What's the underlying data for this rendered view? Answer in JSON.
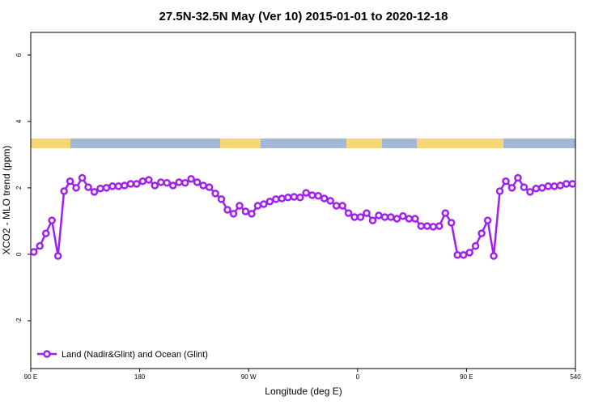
{
  "chart_data": {
    "type": "line",
    "title": "27.5N-32.5N May (Ver 10)   2015-01-01 to 2020-12-18",
    "x_label": "Longitude (deg E)",
    "y_label": "XCO2 - MLO trend (ppm)",
    "x": [
      92.5,
      97.5,
      102.5,
      107.5,
      112.5,
      117.5,
      122.5,
      127.5,
      132.5,
      137.5,
      142.5,
      147.5,
      152.5,
      157.5,
      162.5,
      167.5,
      172.5,
      177.5,
      182.5,
      187.5,
      192.5,
      197.5,
      202.5,
      207.5,
      212.5,
      217.5,
      222.5,
      227.5,
      232.5,
      237.5,
      242.5,
      247.5,
      252.5,
      257.5,
      262.5,
      267.5,
      272.5,
      277.5,
      282.5,
      287.5,
      292.5,
      297.5,
      302.5,
      307.5,
      312.5,
      317.5,
      322.5,
      327.5,
      332.5,
      337.5,
      342.5,
      347.5,
      352.5,
      357.5,
      362.5,
      367.5,
      372.5,
      377.5,
      382.5,
      387.5,
      392.5,
      397.5,
      402.5,
      407.5,
      412.5,
      417.5,
      422.5,
      427.5,
      432.5,
      437.5,
      442.5,
      447.5,
      452.5,
      457.5,
      462.5,
      467.5,
      472.5,
      477.5,
      482.5,
      487.5,
      492.5,
      497.5,
      502.5,
      507.5,
      512.5,
      517.5,
      522.5,
      527.5,
      532.5,
      537.5
    ],
    "series": [
      {
        "name": "Land (Nadir&Glint) and Ocean (Glint)",
        "color": "#a020f0",
        "values": [
          0.07,
          0.25,
          0.63,
          1.02,
          -0.05,
          1.9,
          2.2,
          2.0,
          2.3,
          2.02,
          1.88,
          1.98,
          2.0,
          2.05,
          2.05,
          2.07,
          2.12,
          2.12,
          2.2,
          2.24,
          2.07,
          2.17,
          2.15,
          2.07,
          2.17,
          2.15,
          2.27,
          2.17,
          2.07,
          2.02,
          1.83,
          1.66,
          1.34,
          1.22,
          1.46,
          1.29,
          1.22,
          1.46,
          1.51,
          1.59,
          1.66,
          1.68,
          1.71,
          1.73,
          1.71,
          1.85,
          1.78,
          1.76,
          1.68,
          1.61,
          1.46,
          1.46,
          1.24,
          1.12,
          1.12,
          1.24,
          1.02,
          1.17,
          1.12,
          1.12,
          1.07,
          1.15,
          1.07,
          1.07,
          0.85,
          0.85,
          0.83,
          0.85,
          1.24,
          0.95,
          -0.02,
          -0.02,
          0.05,
          0.25,
          0.63,
          1.02,
          -0.05,
          1.9,
          2.2,
          2.0,
          2.3,
          2.02,
          1.88,
          1.98,
          2.0,
          2.05,
          2.05,
          2.07,
          2.12,
          2.12
        ]
      }
    ],
    "xlim": [
      90,
      540
    ],
    "xticks": [
      {
        "value": 90,
        "label": "90 E"
      },
      180,
      {
        "value": 270,
        "label": "90 W"
      },
      {
        "value": 360,
        "label": "0"
      },
      {
        "value": 450,
        "label": "90 E"
      },
      540
    ],
    "ylim": [
      -3.44,
      6.68
    ],
    "yticks": [
      -2,
      0,
      2,
      4,
      6
    ],
    "legend": "bottom-left"
  }
}
